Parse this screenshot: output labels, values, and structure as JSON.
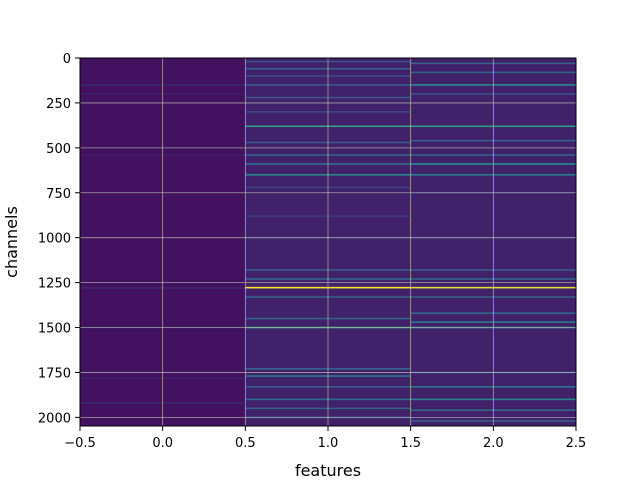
{
  "chart_data": {
    "type": "heatmap",
    "title": "",
    "xlabel": "features",
    "ylabel": "channels",
    "xlim": [
      -0.5,
      2.5
    ],
    "ylim": [
      2048,
      0
    ],
    "y_inverted": true,
    "grid": true,
    "colormap": "viridis",
    "x_ticks": [
      "−0.5",
      "0.0",
      "0.5",
      "1.0",
      "1.5",
      "2.0",
      "2.5"
    ],
    "y_ticks": [
      "0",
      "250",
      "500",
      "750",
      "1000",
      "1250",
      "1500",
      "1750",
      "2000"
    ],
    "x_tick_values": [
      -0.5,
      0.0,
      0.5,
      1.0,
      1.5,
      2.0,
      2.5
    ],
    "y_tick_values": [
      0,
      250,
      500,
      750,
      1000,
      1250,
      1500,
      1750,
      2000
    ],
    "n_channels": 2048,
    "columns": [
      {
        "x": 0,
        "base": 0.05,
        "bright_channels": [
          {
            "channel": 150,
            "value": 0.12
          },
          {
            "channel": 200,
            "value": 0.1
          },
          {
            "channel": 540,
            "value": 0.1
          },
          {
            "channel": 1280,
            "value": 0.12
          },
          {
            "channel": 1500,
            "value": 0.1
          },
          {
            "channel": 1780,
            "value": 0.1
          },
          {
            "channel": 1920,
            "value": 0.12
          }
        ]
      },
      {
        "x": 1,
        "base": 0.1,
        "bright_channels": [
          {
            "channel": 20,
            "value": 0.25
          },
          {
            "channel": 60,
            "value": 0.3
          },
          {
            "channel": 100,
            "value": 0.22
          },
          {
            "channel": 150,
            "value": 0.28
          },
          {
            "channel": 220,
            "value": 0.25
          },
          {
            "channel": 300,
            "value": 0.22
          },
          {
            "channel": 380,
            "value": 0.58
          },
          {
            "channel": 470,
            "value": 0.28
          },
          {
            "channel": 540,
            "value": 0.32
          },
          {
            "channel": 590,
            "value": 0.35
          },
          {
            "channel": 650,
            "value": 0.45
          },
          {
            "channel": 720,
            "value": 0.2
          },
          {
            "channel": 880,
            "value": 0.18
          },
          {
            "channel": 1000,
            "value": 0.18
          },
          {
            "channel": 1180,
            "value": 0.3
          },
          {
            "channel": 1230,
            "value": 0.32
          },
          {
            "channel": 1278,
            "value": 1.0
          },
          {
            "channel": 1330,
            "value": 0.3
          },
          {
            "channel": 1450,
            "value": 0.32
          },
          {
            "channel": 1500,
            "value": 0.6
          },
          {
            "channel": 1730,
            "value": 0.32
          },
          {
            "channel": 1770,
            "value": 0.4
          },
          {
            "channel": 1830,
            "value": 0.3
          },
          {
            "channel": 1900,
            "value": 0.35
          },
          {
            "channel": 1950,
            "value": 0.32
          },
          {
            "channel": 2000,
            "value": 0.28
          }
        ]
      },
      {
        "x": 2,
        "base": 0.1,
        "bright_channels": [
          {
            "channel": 30,
            "value": 0.3
          },
          {
            "channel": 80,
            "value": 0.32
          },
          {
            "channel": 150,
            "value": 0.48
          },
          {
            "channel": 200,
            "value": 0.25
          },
          {
            "channel": 380,
            "value": 0.55
          },
          {
            "channel": 460,
            "value": 0.3
          },
          {
            "channel": 540,
            "value": 0.32
          },
          {
            "channel": 590,
            "value": 0.5
          },
          {
            "channel": 650,
            "value": 0.42
          },
          {
            "channel": 750,
            "value": 0.18
          },
          {
            "channel": 1000,
            "value": 0.18
          },
          {
            "channel": 1180,
            "value": 0.3
          },
          {
            "channel": 1230,
            "value": 0.32
          },
          {
            "channel": 1278,
            "value": 0.95
          },
          {
            "channel": 1330,
            "value": 0.3
          },
          {
            "channel": 1420,
            "value": 0.35
          },
          {
            "channel": 1470,
            "value": 0.42
          },
          {
            "channel": 1500,
            "value": 0.5
          },
          {
            "channel": 1750,
            "value": 0.3
          },
          {
            "channel": 1830,
            "value": 0.4
          },
          {
            "channel": 1900,
            "value": 0.45
          },
          {
            "channel": 1960,
            "value": 0.35
          },
          {
            "channel": 2020,
            "value": 0.3
          }
        ]
      }
    ]
  }
}
